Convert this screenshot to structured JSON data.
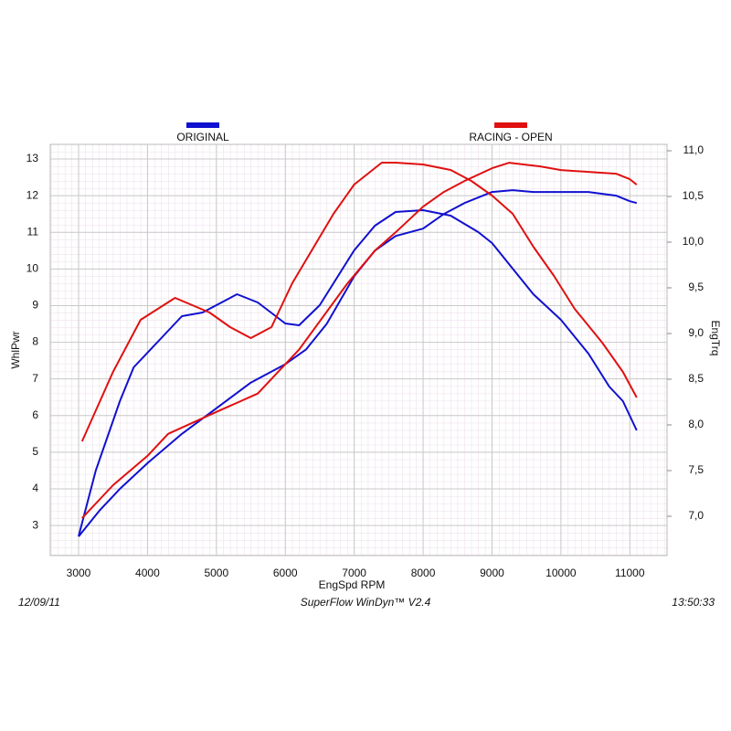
{
  "chart_data": {
    "type": "line",
    "xlabel": "EngSpd  RPM",
    "ylabel": "WhlPwr",
    "y2label": "EngTrq",
    "footer_left": "12/09/11",
    "footer_center": "SuperFlow WinDyn™ V2.4",
    "footer_right": "13:50:33",
    "xlim": [
      2589,
      11540
    ],
    "xticks": [
      3000,
      4000,
      5000,
      6000,
      7000,
      8000,
      9000,
      10000,
      11000
    ],
    "ylim": [
      2.18,
      13.4
    ],
    "yticks": [
      3,
      4,
      5,
      6,
      7,
      8,
      9,
      10,
      11,
      12,
      13
    ],
    "y2lim": [
      6.57,
      11.07
    ],
    "y2ticks": [
      {
        "value": 7.0,
        "label": "7,0"
      },
      {
        "value": 7.5,
        "label": "7,5"
      },
      {
        "value": 8.0,
        "label": "8,0"
      },
      {
        "value": 8.5,
        "label": "8,5"
      },
      {
        "value": 9.0,
        "label": "9,0"
      },
      {
        "value": 9.5,
        "label": "9,5"
      },
      {
        "value": 10.0,
        "label": "10,0"
      },
      {
        "value": 10.5,
        "label": "10,5"
      },
      {
        "value": 11.0,
        "label": "11,0"
      }
    ],
    "grid": true,
    "series": [
      {
        "name": "ORIGINAL",
        "color": "#1010d0",
        "axis": "y",
        "x": [
          3000,
          3300,
          3600,
          4000,
          4500,
          5000,
          5500,
          6000,
          6300,
          6600,
          7000,
          7300,
          7600,
          8000,
          8300,
          8600,
          9000,
          9300,
          9600,
          10000,
          10400,
          10800,
          11000,
          11100
        ],
        "values": [
          2.7,
          3.4,
          4.0,
          4.7,
          5.5,
          6.2,
          6.9,
          7.4,
          7.8,
          8.5,
          9.8,
          10.5,
          10.9,
          11.1,
          11.5,
          11.8,
          12.1,
          12.15,
          12.1,
          12.1,
          12.1,
          12.0,
          11.85,
          11.8
        ]
      },
      {
        "name": "ORIGINAL",
        "color": "#1010d0",
        "axis": "y2",
        "x": [
          3000,
          3250,
          3600,
          3800,
          4200,
          4500,
          4800,
          5000,
          5300,
          5600,
          6000,
          6200,
          6500,
          7000,
          7300,
          7600,
          8000,
          8400,
          8800,
          9000,
          9300,
          9600,
          10000,
          10400,
          10700,
          10900,
          11100
        ],
        "values": [
          6.78,
          7.5,
          8.26,
          8.63,
          8.95,
          9.19,
          9.23,
          9.31,
          9.43,
          9.34,
          9.11,
          9.09,
          9.31,
          9.91,
          10.18,
          10.33,
          10.35,
          10.29,
          10.11,
          9.99,
          9.71,
          9.43,
          9.15,
          8.78,
          8.42,
          8.26,
          7.94
        ]
      },
      {
        "name": "RACING - OPEN",
        "color": "#e01010",
        "axis": "y",
        "x": [
          3050,
          3500,
          4000,
          4300,
          5000,
          5600,
          6200,
          6900,
          7300,
          7600,
          8000,
          8300,
          8600,
          9000,
          9250,
          9700,
          10000,
          10400,
          10800,
          11000,
          11100
        ],
        "values": [
          3.2,
          4.1,
          4.9,
          5.5,
          6.1,
          6.6,
          7.8,
          9.6,
          10.5,
          11.0,
          11.7,
          12.1,
          12.4,
          12.75,
          12.9,
          12.8,
          12.7,
          12.65,
          12.6,
          12.45,
          12.3
        ]
      },
      {
        "name": "RACING - OPEN",
        "color": "#e01010",
        "axis": "y2",
        "x": [
          3050,
          3500,
          3900,
          4400,
          4900,
          5200,
          5500,
          5800,
          6100,
          6700,
          7000,
          7400,
          7600,
          8000,
          8400,
          8700,
          9000,
          9300,
          9600,
          9900,
          10200,
          10600,
          10900,
          11100
        ],
        "values": [
          7.82,
          8.58,
          9.15,
          9.39,
          9.23,
          9.07,
          8.95,
          9.07,
          9.55,
          10.31,
          10.63,
          10.87,
          10.87,
          10.85,
          10.79,
          10.67,
          10.51,
          10.31,
          9.95,
          9.63,
          9.27,
          8.9,
          8.58,
          8.3
        ]
      }
    ]
  }
}
